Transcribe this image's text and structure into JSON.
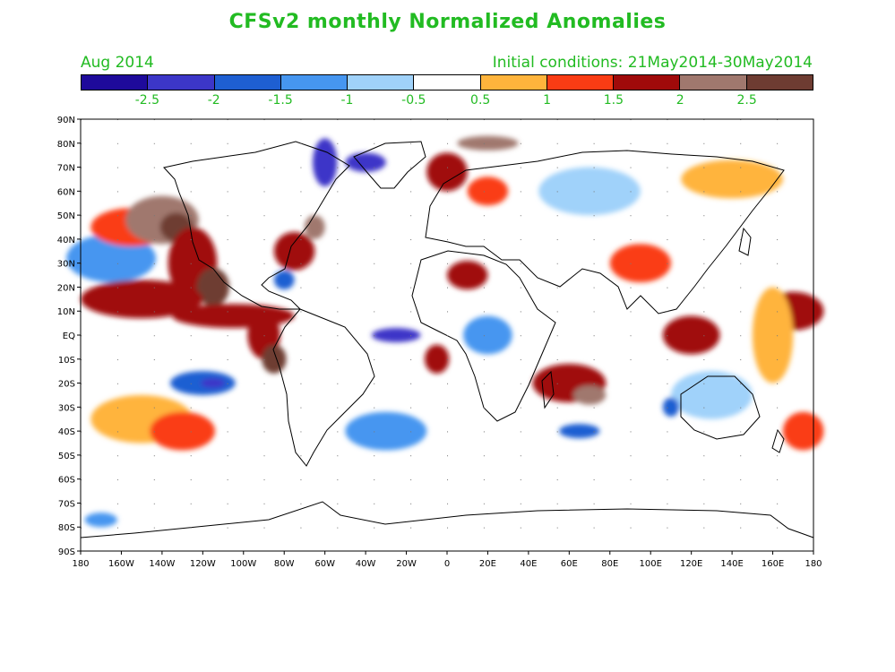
{
  "title": "CFSv2 monthly Normalized Anomalies",
  "month": "Aug 2014",
  "init": "Initial conditions: 21May2014-30May2014",
  "colorbar": {
    "colors": [
      "#1e0a9b",
      "#3c36c8",
      "#1e5fd2",
      "#4696f0",
      "#a0d2fa",
      "#ffffff",
      "#ffb43c",
      "#fa3c14",
      "#a00a0a",
      "#a0786e",
      "#6e3c32"
    ],
    "labels": [
      "-2.5",
      "-2",
      "-1.5",
      "-1",
      "-0.5",
      "0.5",
      "1",
      "1.5",
      "2",
      "2.5"
    ]
  },
  "lat_labels": [
    "90N",
    "80N",
    "70N",
    "60N",
    "50N",
    "40N",
    "30N",
    "20N",
    "10N",
    "EQ",
    "10S",
    "20S",
    "30S",
    "40S",
    "50S",
    "60S",
    "70S",
    "80S",
    "90S"
  ],
  "lon_labels": [
    "180",
    "160W",
    "140W",
    "120W",
    "100W",
    "80W",
    "60W",
    "40W",
    "20W",
    "0",
    "20E",
    "40E",
    "60E",
    "80E",
    "100E",
    "120E",
    "140E",
    "160E",
    "180"
  ],
  "anomalies": [
    {
      "lon": -165,
      "lat": 32,
      "rx": 22,
      "ry": 10,
      "v": -1.2
    },
    {
      "lon": -155,
      "lat": 45,
      "rx": 20,
      "ry": 8,
      "v": 1.5
    },
    {
      "lon": -140,
      "lat": 48,
      "rx": 18,
      "ry": 10,
      "v": 2.2
    },
    {
      "lon": -133,
      "lat": 45,
      "rx": 8,
      "ry": 6,
      "v": 2.8
    },
    {
      "lon": -125,
      "lat": 30,
      "rx": 12,
      "ry": 15,
      "v": 2.0
    },
    {
      "lon": -115,
      "lat": 20,
      "rx": 8,
      "ry": 8,
      "v": 2.6
    },
    {
      "lon": -150,
      "lat": 15,
      "rx": 30,
      "ry": 8,
      "v": 1.6
    },
    {
      "lon": -105,
      "lat": 8,
      "rx": 30,
      "ry": 5,
      "v": 1.6
    },
    {
      "lon": -90,
      "lat": 0,
      "rx": 8,
      "ry": 10,
      "v": 2.0
    },
    {
      "lon": -85,
      "lat": -10,
      "rx": 6,
      "ry": 6,
      "v": 2.6
    },
    {
      "lon": -120,
      "lat": -20,
      "rx": 16,
      "ry": 5,
      "v": -1.6
    },
    {
      "lon": -115,
      "lat": -20,
      "rx": 6,
      "ry": 2,
      "v": -2.2
    },
    {
      "lon": -150,
      "lat": -35,
      "rx": 25,
      "ry": 10,
      "v": 0.9
    },
    {
      "lon": -130,
      "lat": -40,
      "rx": 16,
      "ry": 8,
      "v": 1.1
    },
    {
      "lon": -75,
      "lat": 35,
      "rx": 10,
      "ry": 8,
      "v": 1.7
    },
    {
      "lon": -65,
      "lat": 45,
      "rx": 5,
      "ry": 5,
      "v": 2.3
    },
    {
      "lon": -80,
      "lat": 23,
      "rx": 5,
      "ry": 4,
      "v": -1.8
    },
    {
      "lon": -30,
      "lat": -40,
      "rx": 12,
      "ry": 5,
      "v": -2.2
    },
    {
      "lon": -25,
      "lat": 0,
      "rx": 12,
      "ry": 3,
      "v": -2.1
    },
    {
      "lon": -5,
      "lat": -10,
      "rx": 6,
      "ry": 6,
      "v": 1.6
    },
    {
      "lon": -30,
      "lat": -40,
      "rx": 20,
      "ry": 8,
      "v": -1.0
    },
    {
      "lon": -60,
      "lat": 72,
      "rx": 6,
      "ry": 10,
      "v": -2.0
    },
    {
      "lon": -40,
      "lat": 72,
      "rx": 10,
      "ry": 4,
      "v": -2.2
    },
    {
      "lon": 0,
      "lat": 68,
      "rx": 10,
      "ry": 8,
      "v": 1.6
    },
    {
      "lon": 20,
      "lat": 80,
      "rx": 15,
      "ry": 3,
      "v": 2.4
    },
    {
      "lon": 20,
      "lat": 60,
      "rx": 10,
      "ry": 6,
      "v": 1.5
    },
    {
      "lon": 10,
      "lat": 25,
      "rx": 10,
      "ry": 6,
      "v": 1.6
    },
    {
      "lon": 20,
      "lat": 0,
      "rx": 12,
      "ry": 8,
      "v": -1.2
    },
    {
      "lon": 60,
      "lat": -20,
      "rx": 18,
      "ry": 8,
      "v": 1.8
    },
    {
      "lon": 70,
      "lat": -25,
      "rx": 8,
      "ry": 4,
      "v": 2.2
    },
    {
      "lon": 65,
      "lat": -40,
      "rx": 10,
      "ry": 3,
      "v": -1.5
    },
    {
      "lon": 120,
      "lat": 0,
      "rx": 14,
      "ry": 8,
      "v": 1.7
    },
    {
      "lon": 130,
      "lat": -25,
      "rx": 20,
      "ry": 10,
      "v": -0.8
    },
    {
      "lon": 110,
      "lat": -30,
      "rx": 4,
      "ry": 4,
      "v": -1.6
    },
    {
      "lon": 175,
      "lat": -40,
      "rx": 10,
      "ry": 8,
      "v": 1.4
    },
    {
      "lon": 170,
      "lat": 10,
      "rx": 15,
      "ry": 8,
      "v": 1.6
    },
    {
      "lon": 95,
      "lat": 30,
      "rx": 15,
      "ry": 8,
      "v": 1.3
    },
    {
      "lon": 70,
      "lat": 60,
      "rx": 25,
      "ry": 10,
      "v": -0.8
    },
    {
      "lon": 140,
      "lat": 65,
      "rx": 25,
      "ry": 8,
      "v": 0.9
    },
    {
      "lon": 160,
      "lat": 0,
      "rx": 10,
      "ry": 20,
      "v": 0.8
    },
    {
      "lon": -170,
      "lat": -77,
      "rx": 8,
      "ry": 3,
      "v": -1.3
    }
  ]
}
